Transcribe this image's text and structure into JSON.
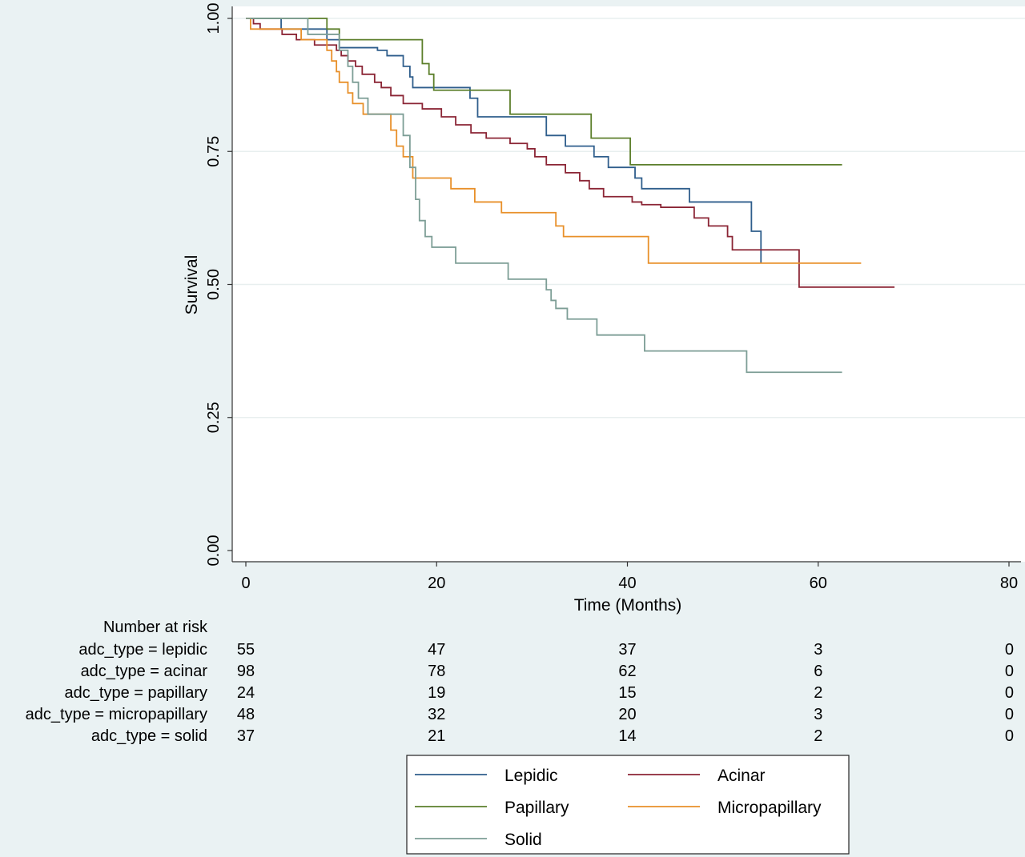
{
  "chart_data": {
    "type": "line",
    "title": "",
    "xlabel": "Time (Months)",
    "ylabel": "Survival",
    "xlim": [
      0,
      80
    ],
    "ylim": [
      0,
      1
    ],
    "x_ticks": [
      "0",
      "20",
      "40",
      "60",
      "80"
    ],
    "y_ticks": [
      "0.00",
      "0.25",
      "0.50",
      "0.75",
      "1.00"
    ],
    "grid": true,
    "legend_position": "bottom",
    "series": [
      {
        "name": "Lepidic",
        "color": "#2f5e8c",
        "x": [
          0,
          3.7,
          8.5,
          9.8,
          13.8,
          14.8,
          16.5,
          17.2,
          17.5,
          23.5,
          24.3,
          31.5,
          33.5,
          36.5,
          38,
          40.8,
          41.5,
          46.5,
          53,
          54
        ],
        "y": [
          1,
          0.98,
          0.96,
          0.945,
          0.94,
          0.93,
          0.91,
          0.89,
          0.87,
          0.85,
          0.815,
          0.78,
          0.76,
          0.74,
          0.72,
          0.7,
          0.68,
          0.655,
          0.6,
          0.54
        ],
        "end_x": 54
      },
      {
        "name": "Acinar",
        "color": "#8b2535",
        "x": [
          0,
          0.8,
          1.5,
          3.8,
          5.3,
          7.2,
          9.5,
          10,
          10.7,
          11.5,
          12.2,
          13.5,
          14.2,
          15.2,
          16.5,
          18.5,
          20.5,
          22,
          23.6,
          25.2,
          27.7,
          29.5,
          30.3,
          31.5,
          33.5,
          35,
          36,
          37.5,
          40.5,
          41.5,
          43.5,
          47,
          48.5,
          50.5,
          51,
          58
        ],
        "y": [
          1,
          0.99,
          0.98,
          0.97,
          0.96,
          0.95,
          0.94,
          0.93,
          0.92,
          0.91,
          0.895,
          0.88,
          0.87,
          0.855,
          0.84,
          0.83,
          0.815,
          0.8,
          0.785,
          0.775,
          0.765,
          0.755,
          0.74,
          0.725,
          0.71,
          0.695,
          0.68,
          0.665,
          0.655,
          0.65,
          0.645,
          0.625,
          0.61,
          0.59,
          0.565,
          0.495
        ],
        "end_x": 68
      },
      {
        "name": "Papillary",
        "color": "#5c7f2b",
        "x": [
          0,
          8.5,
          9.8,
          18.5,
          19.2,
          19.7,
          27.7,
          36.2,
          40.3
        ],
        "y": [
          1,
          0.98,
          0.96,
          0.915,
          0.895,
          0.865,
          0.82,
          0.775,
          0.725
        ],
        "end_x": 62.5
      },
      {
        "name": "Micropapillary",
        "color": "#e8902a",
        "x": [
          0,
          0.5,
          5.8,
          8.5,
          9,
          9.5,
          9.8,
          10.7,
          11.2,
          12.3,
          15.2,
          15.8,
          16.5,
          17.5,
          21.5,
          24,
          26.8,
          32.5,
          33.3,
          42.2
        ],
        "y": [
          1,
          0.98,
          0.96,
          0.94,
          0.92,
          0.9,
          0.88,
          0.86,
          0.84,
          0.82,
          0.79,
          0.76,
          0.74,
          0.7,
          0.68,
          0.655,
          0.635,
          0.61,
          0.59,
          0.54
        ],
        "end_x": 64.5
      },
      {
        "name": "Solid",
        "color": "#7d9e96",
        "x": [
          0,
          6.5,
          9.8,
          10.7,
          11.2,
          11.8,
          12.8,
          16.5,
          17.2,
          17.8,
          18.2,
          18.8,
          19.5,
          22,
          27.5,
          31.5,
          32,
          32.5,
          33.7,
          36.8,
          41.8,
          52.5
        ],
        "y": [
          1,
          0.97,
          0.94,
          0.91,
          0.88,
          0.85,
          0.82,
          0.78,
          0.72,
          0.66,
          0.62,
          0.59,
          0.57,
          0.54,
          0.51,
          0.49,
          0.47,
          0.455,
          0.435,
          0.405,
          0.375,
          0.335
        ],
        "end_x": 62.5
      }
    ]
  },
  "risk_table": {
    "title": "Number at risk",
    "times": [
      0,
      20,
      40,
      60,
      80
    ],
    "rows": [
      {
        "label": "adc_type = lepidic",
        "values": [
          "55",
          "47",
          "37",
          "3",
          "0"
        ]
      },
      {
        "label": "adc_type = acinar",
        "values": [
          "98",
          "78",
          "62",
          "6",
          "0"
        ]
      },
      {
        "label": "adc_type = papillary",
        "values": [
          "24",
          "19",
          "15",
          "2",
          "0"
        ]
      },
      {
        "label": "adc_type = micropapillary",
        "values": [
          "48",
          "32",
          "20",
          "3",
          "0"
        ]
      },
      {
        "label": "adc_type = solid",
        "values": [
          "37",
          "21",
          "14",
          "2",
          "0"
        ]
      }
    ]
  }
}
